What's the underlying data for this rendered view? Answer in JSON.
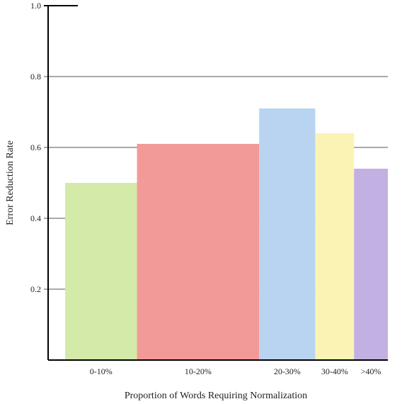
{
  "chart_data": {
    "type": "bar",
    "title": "",
    "xlabel": "Proportion of Words Requiring Normalization",
    "ylabel": "Error Reduction Rate",
    "ylim": [
      0,
      1.0
    ],
    "yticks": [
      "0.2",
      "0.4",
      "0.6",
      "0.8",
      "1.0"
    ],
    "grid": true,
    "variable_width": true,
    "categories": [
      "0-10%",
      "10-20%",
      "20-30%",
      "30-40%",
      ">40%"
    ],
    "values": [
      0.5,
      0.61,
      0.71,
      0.64,
      0.54
    ],
    "relative_widths": [
      1.0,
      1.7,
      0.78,
      0.54,
      0.47
    ],
    "colors": [
      "#d3eaa8",
      "#f29a98",
      "#b8d4f0",
      "#faf3b4",
      "#c2b0e2"
    ]
  }
}
